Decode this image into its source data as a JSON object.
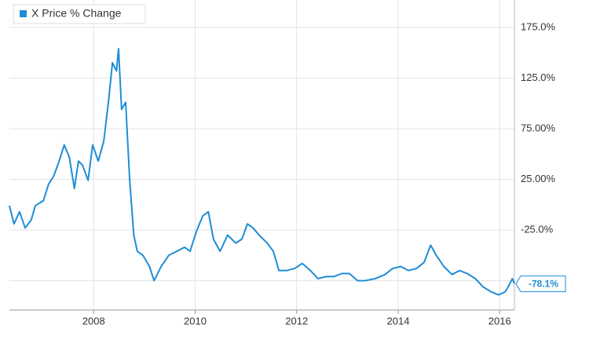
{
  "chart_data": {
    "type": "line",
    "x": [
      2006.34,
      2006.43,
      2006.54,
      2006.65,
      2006.77,
      2006.85,
      2007.01,
      2007.11,
      2007.21,
      2007.32,
      2007.42,
      2007.52,
      2007.62,
      2007.7,
      2007.78,
      2007.89,
      2007.98,
      2008.09,
      2008.2,
      2008.29,
      2008.37,
      2008.45,
      2008.49,
      2008.55,
      2008.63,
      2008.71,
      2008.79,
      2008.86,
      2008.97,
      2009.1,
      2009.19,
      2009.33,
      2009.48,
      2009.64,
      2009.79,
      2009.9,
      2010.02,
      2010.15,
      2010.26,
      2010.36,
      2010.49,
      2010.64,
      2010.8,
      2010.92,
      2011.03,
      2011.14,
      2011.26,
      2011.42,
      2011.54,
      2011.65,
      2011.8,
      2011.96,
      2012.11,
      2012.27,
      2012.42,
      2012.58,
      2012.73,
      2012.89,
      2013.04,
      2013.2,
      2013.35,
      2013.55,
      2013.74,
      2013.89,
      2014.05,
      2014.2,
      2014.36,
      2014.51,
      2014.64,
      2014.75,
      2014.9,
      2015.06,
      2015.21,
      2015.36,
      2015.52,
      2015.67,
      2015.83,
      2015.98,
      2016.11,
      2016.19,
      2016.25,
      2016.29
    ],
    "series": [
      {
        "name": "X Price % Change",
        "color": "#1f8dd6",
        "values": [
          -1,
          -19,
          -7,
          -23,
          -15,
          -1,
          4,
          20,
          28,
          43,
          59,
          47,
          16,
          43,
          39,
          24,
          59,
          43,
          63,
          101,
          140,
          132,
          154,
          94,
          101,
          24,
          -30,
          -46,
          -50,
          -61,
          -75,
          -61,
          -50,
          -46,
          -42,
          -46,
          -27,
          -11,
          -7,
          -34,
          -46,
          -30,
          -38,
          -34,
          -19,
          -23,
          -30,
          -38,
          -46,
          -65,
          -65,
          -63,
          -58,
          -65,
          -73,
          -71,
          -71,
          -68,
          -68,
          -75,
          -75,
          -73,
          -69,
          -63,
          -61,
          -65,
          -63,
          -57,
          -40,
          -50,
          -61,
          -69,
          -65,
          -68,
          -73,
          -81,
          -86,
          -89,
          -86,
          -79,
          -73,
          -78.1
        ]
      }
    ],
    "end_label": {
      "value": -78.1,
      "label": "-78.1%"
    },
    "xlim": [
      2006.34,
      2016.29
    ],
    "xticks": [
      2008,
      2010,
      2012,
      2014,
      2016
    ],
    "ylim": [
      -104,
      202
    ],
    "yticks": [
      {
        "value": -75,
        "label": null
      },
      {
        "value": -25,
        "label": "-25.0%"
      },
      {
        "value": 25,
        "label": "25.00%"
      },
      {
        "value": 75,
        "label": "75.00%"
      },
      {
        "value": 125,
        "label": "125.0%"
      },
      {
        "value": 175,
        "label": "175.0%"
      }
    ],
    "grid": true
  }
}
